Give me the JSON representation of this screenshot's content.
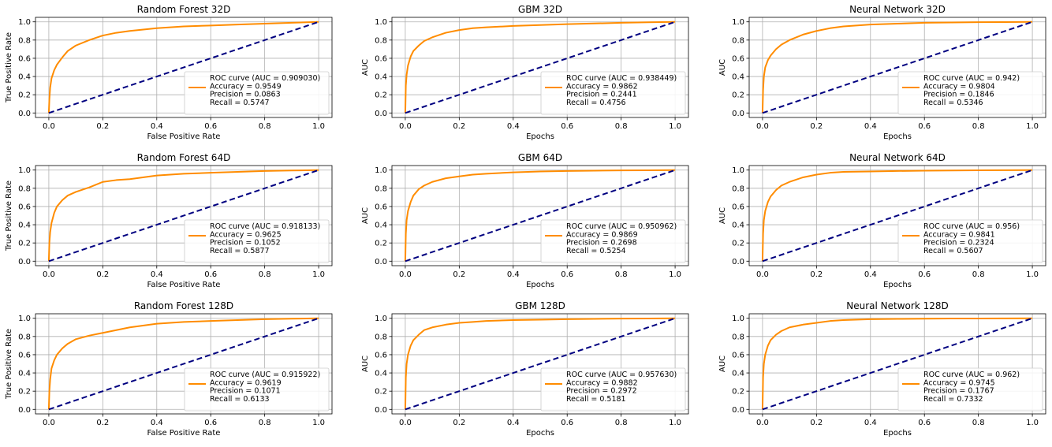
{
  "colors": {
    "roc": "#ff8c00",
    "diagonal": "#000080",
    "grid": "#b0b0b0",
    "axes": "#000000",
    "legend_border": "#cccccc"
  },
  "chart_data": [
    {
      "type": "line",
      "title": "Random Forest 32D",
      "xlabel": "False Positive Rate",
      "ylabel": "True Positive Rate",
      "xlim": [
        0,
        1
      ],
      "ylim": [
        0,
        1
      ],
      "xticks": [
        "0.0",
        "0.2",
        "0.4",
        "0.6",
        "0.8",
        "1.0"
      ],
      "yticks": [
        "0.0",
        "0.2",
        "0.4",
        "0.6",
        "0.8",
        "1.0"
      ],
      "grid": true,
      "legend_position": "lower-right",
      "legend": [
        "ROC curve (AUC = 0.909030)",
        "Accuracy = 0.9549",
        "Precision = 0.0863",
        "Recall = 0.5747"
      ],
      "series": [
        {
          "x": [
            0,
            0.002,
            0.005,
            0.01,
            0.02,
            0.03,
            0.05,
            0.07,
            0.1,
            0.15,
            0.2,
            0.25,
            0.3,
            0.4,
            0.5,
            0.6,
            0.7,
            0.8,
            0.9,
            1.0
          ],
          "y": [
            0,
            0.15,
            0.28,
            0.38,
            0.47,
            0.53,
            0.61,
            0.68,
            0.74,
            0.8,
            0.85,
            0.88,
            0.9,
            0.93,
            0.95,
            0.96,
            0.97,
            0.98,
            0.99,
            1.0
          ]
        },
        {
          "x": [
            0,
            1
          ],
          "y": [
            0,
            1
          ],
          "dashed": true
        }
      ]
    },
    {
      "type": "line",
      "title": "GBM 32D",
      "xlabel": "Epochs",
      "ylabel": "AUC",
      "xlim": [
        0,
        1
      ],
      "ylim": [
        0,
        1
      ],
      "xticks": [
        "0.0",
        "0.2",
        "0.4",
        "0.6",
        "0.8",
        "1.0"
      ],
      "yticks": [
        "0.0",
        "0.2",
        "0.4",
        "0.6",
        "0.8",
        "1.0"
      ],
      "grid": true,
      "legend_position": "lower-right",
      "legend": [
        "ROC curve (AUC = 0.938449)",
        "Accuracy = 0.9862",
        "Precision = 0.2441",
        "Recall = 0.4756"
      ],
      "series": [
        {
          "x": [
            0,
            0.002,
            0.005,
            0.01,
            0.02,
            0.03,
            0.05,
            0.07,
            0.1,
            0.15,
            0.2,
            0.25,
            0.3,
            0.4,
            0.5,
            0.6,
            0.7,
            0.8,
            0.9,
            1.0
          ],
          "y": [
            0,
            0.3,
            0.42,
            0.52,
            0.62,
            0.68,
            0.74,
            0.79,
            0.83,
            0.88,
            0.91,
            0.93,
            0.94,
            0.955,
            0.965,
            0.975,
            0.982,
            0.99,
            0.995,
            1.0
          ]
        },
        {
          "x": [
            0,
            1
          ],
          "y": [
            0,
            1
          ],
          "dashed": true
        }
      ]
    },
    {
      "type": "line",
      "title": "Neural Network 32D",
      "xlabel": "Epochs",
      "ylabel": "AUC",
      "xlim": [
        0,
        1
      ],
      "ylim": [
        0,
        1
      ],
      "xticks": [
        "0.0",
        "0.2",
        "0.4",
        "0.6",
        "0.8",
        "1.0"
      ],
      "yticks": [
        "0.0",
        "0.2",
        "0.4",
        "0.6",
        "0.8",
        "1.0"
      ],
      "grid": true,
      "legend_position": "lower-right",
      "legend": [
        "ROC curve (AUC = 0.942)",
        "Accuracy = 0.9804",
        "Precision = 0.1846",
        "Recall = 0.5346"
      ],
      "series": [
        {
          "x": [
            0,
            0.002,
            0.005,
            0.01,
            0.02,
            0.03,
            0.05,
            0.07,
            0.1,
            0.15,
            0.2,
            0.25,
            0.3,
            0.4,
            0.5,
            0.6,
            0.7,
            0.8,
            0.9,
            1.0
          ],
          "y": [
            0,
            0.25,
            0.4,
            0.5,
            0.58,
            0.63,
            0.7,
            0.75,
            0.8,
            0.86,
            0.9,
            0.93,
            0.95,
            0.97,
            0.98,
            0.99,
            0.993,
            0.996,
            0.998,
            1.0
          ]
        },
        {
          "x": [
            0,
            1
          ],
          "y": [
            0,
            1
          ],
          "dashed": true
        }
      ]
    },
    {
      "type": "line",
      "title": "Random Forest 64D",
      "xlabel": "False Positive Rate",
      "ylabel": "True Positive Rate",
      "xlim": [
        0,
        1
      ],
      "ylim": [
        0,
        1
      ],
      "xticks": [
        "0.0",
        "0.2",
        "0.4",
        "0.6",
        "0.8",
        "1.0"
      ],
      "yticks": [
        "0.0",
        "0.2",
        "0.4",
        "0.6",
        "0.8",
        "1.0"
      ],
      "grid": true,
      "legend_position": "lower-right",
      "legend": [
        "ROC curve (AUC = 0.918133)",
        "Accuracy = 0.9625",
        "Precision = 0.1052",
        "Recall = 0.5877"
      ],
      "series": [
        {
          "x": [
            0,
            0.002,
            0.005,
            0.01,
            0.02,
            0.03,
            0.05,
            0.07,
            0.1,
            0.15,
            0.2,
            0.25,
            0.3,
            0.4,
            0.5,
            0.6,
            0.7,
            0.8,
            0.9,
            1.0
          ],
          "y": [
            0,
            0.2,
            0.32,
            0.42,
            0.53,
            0.6,
            0.67,
            0.72,
            0.76,
            0.81,
            0.87,
            0.89,
            0.9,
            0.94,
            0.96,
            0.97,
            0.98,
            0.99,
            0.995,
            1.0
          ]
        },
        {
          "x": [
            0,
            1
          ],
          "y": [
            0,
            1
          ],
          "dashed": true
        }
      ]
    },
    {
      "type": "line",
      "title": "GBM 64D",
      "xlabel": "Epochs",
      "ylabel": "AUC",
      "xlim": [
        0,
        1
      ],
      "ylim": [
        0,
        1
      ],
      "xticks": [
        "0.0",
        "0.2",
        "0.4",
        "0.6",
        "0.8",
        "1.0"
      ],
      "yticks": [
        "0.0",
        "0.2",
        "0.4",
        "0.6",
        "0.8",
        "1.0"
      ],
      "grid": true,
      "legend_position": "lower-right",
      "legend": [
        "ROC curve (AUC = 0.950962)",
        "Accuracy = 0.9869",
        "Precision = 0.2698",
        "Recall = 0.5254"
      ],
      "series": [
        {
          "x": [
            0,
            0.002,
            0.005,
            0.01,
            0.02,
            0.03,
            0.05,
            0.07,
            0.1,
            0.15,
            0.2,
            0.25,
            0.3,
            0.4,
            0.5,
            0.6,
            0.7,
            0.8,
            0.9,
            1.0
          ],
          "y": [
            0,
            0.3,
            0.45,
            0.55,
            0.65,
            0.72,
            0.79,
            0.83,
            0.87,
            0.91,
            0.93,
            0.95,
            0.96,
            0.975,
            0.985,
            0.99,
            0.993,
            0.996,
            0.998,
            1.0
          ]
        },
        {
          "x": [
            0,
            1
          ],
          "y": [
            0,
            1
          ],
          "dashed": true
        }
      ]
    },
    {
      "type": "line",
      "title": "Neural Network 64D",
      "xlabel": "Epochs",
      "ylabel": "AUC",
      "xlim": [
        0,
        1
      ],
      "ylim": [
        0,
        1
      ],
      "xticks": [
        "0.0",
        "0.2",
        "0.4",
        "0.6",
        "0.8",
        "1.0"
      ],
      "yticks": [
        "0.0",
        "0.2",
        "0.4",
        "0.6",
        "0.8",
        "1.0"
      ],
      "grid": true,
      "legend_position": "lower-right",
      "legend": [
        "ROC curve (AUC = 0.956)",
        "Accuracy = 0.9841",
        "Precision = 0.2324",
        "Recall = 0.5607"
      ],
      "series": [
        {
          "x": [
            0,
            0.002,
            0.005,
            0.01,
            0.02,
            0.03,
            0.05,
            0.07,
            0.1,
            0.15,
            0.2,
            0.25,
            0.3,
            0.4,
            0.5,
            0.6,
            0.7,
            0.8,
            0.9,
            1.0
          ],
          "y": [
            0,
            0.3,
            0.45,
            0.55,
            0.65,
            0.71,
            0.78,
            0.83,
            0.87,
            0.92,
            0.95,
            0.97,
            0.98,
            0.985,
            0.99,
            0.993,
            0.995,
            0.997,
            0.999,
            1.0
          ]
        },
        {
          "x": [
            0,
            1
          ],
          "y": [
            0,
            1
          ],
          "dashed": true
        }
      ]
    },
    {
      "type": "line",
      "title": "Random Forest 128D",
      "xlabel": "False Positive Rate",
      "ylabel": "True Positive Rate",
      "xlim": [
        0,
        1
      ],
      "ylim": [
        0,
        1
      ],
      "xticks": [
        "0.0",
        "0.2",
        "0.4",
        "0.6",
        "0.8",
        "1.0"
      ],
      "yticks": [
        "0.0",
        "0.2",
        "0.4",
        "0.6",
        "0.8",
        "1.0"
      ],
      "grid": true,
      "legend_position": "lower-right",
      "legend": [
        "ROC curve (AUC = 0.915922)",
        "Accuracy = 0.9619",
        "Precision = 0.1071",
        "Recall = 0.6133"
      ],
      "series": [
        {
          "x": [
            0,
            0.002,
            0.005,
            0.01,
            0.02,
            0.03,
            0.05,
            0.07,
            0.1,
            0.15,
            0.2,
            0.25,
            0.3,
            0.4,
            0.5,
            0.6,
            0.7,
            0.8,
            0.9,
            1.0
          ],
          "y": [
            0,
            0.2,
            0.33,
            0.45,
            0.54,
            0.6,
            0.67,
            0.72,
            0.77,
            0.81,
            0.84,
            0.87,
            0.9,
            0.94,
            0.96,
            0.97,
            0.98,
            0.99,
            0.995,
            1.0
          ]
        },
        {
          "x": [
            0,
            1
          ],
          "y": [
            0,
            1
          ],
          "dashed": true
        }
      ]
    },
    {
      "type": "line",
      "title": "GBM 128D",
      "xlabel": "Epochs",
      "ylabel": "AUC",
      "xlim": [
        0,
        1
      ],
      "ylim": [
        0,
        1
      ],
      "xticks": [
        "0.0",
        "0.2",
        "0.4",
        "0.6",
        "0.8",
        "1.0"
      ],
      "yticks": [
        "0.0",
        "0.2",
        "0.4",
        "0.6",
        "0.8",
        "1.0"
      ],
      "grid": true,
      "legend_position": "lower-right",
      "legend": [
        "ROC curve (AUC = 0.957630)",
        "Accuracy = 0.9882",
        "Precision = 0.2972",
        "Recall = 0.5181"
      ],
      "series": [
        {
          "x": [
            0,
            0.002,
            0.005,
            0.01,
            0.02,
            0.03,
            0.05,
            0.07,
            0.1,
            0.15,
            0.2,
            0.25,
            0.3,
            0.4,
            0.5,
            0.6,
            0.7,
            0.8,
            0.9,
            1.0
          ],
          "y": [
            0,
            0.35,
            0.5,
            0.6,
            0.7,
            0.76,
            0.82,
            0.87,
            0.9,
            0.93,
            0.95,
            0.96,
            0.97,
            0.98,
            0.985,
            0.99,
            0.993,
            0.996,
            0.998,
            1.0
          ]
        },
        {
          "x": [
            0,
            1
          ],
          "y": [
            0,
            1
          ],
          "dashed": true
        }
      ]
    },
    {
      "type": "line",
      "title": "Neural Network 128D",
      "xlabel": "Epochs",
      "ylabel": "AUC",
      "xlim": [
        0,
        1
      ],
      "ylim": [
        0,
        1
      ],
      "xticks": [
        "0.0",
        "0.2",
        "0.4",
        "0.6",
        "0.8",
        "1.0"
      ],
      "yticks": [
        "0.0",
        "0.2",
        "0.4",
        "0.6",
        "0.8",
        "1.0"
      ],
      "grid": true,
      "legend_position": "lower-right",
      "legend": [
        "ROC curve (AUC = 0.962)",
        "Accuracy = 0.9745",
        "Precision = 0.1767",
        "Recall = 0.7332"
      ],
      "series": [
        {
          "x": [
            0,
            0.002,
            0.005,
            0.01,
            0.02,
            0.03,
            0.05,
            0.07,
            0.1,
            0.15,
            0.2,
            0.25,
            0.3,
            0.4,
            0.5,
            0.6,
            0.7,
            0.8,
            0.9,
            1.0
          ],
          "y": [
            0,
            0.35,
            0.5,
            0.6,
            0.7,
            0.76,
            0.82,
            0.86,
            0.9,
            0.93,
            0.95,
            0.97,
            0.98,
            0.99,
            0.993,
            0.995,
            0.997,
            0.998,
            0.999,
            1.0
          ]
        },
        {
          "x": [
            0,
            1
          ],
          "y": [
            0,
            1
          ],
          "dashed": true
        }
      ]
    }
  ]
}
